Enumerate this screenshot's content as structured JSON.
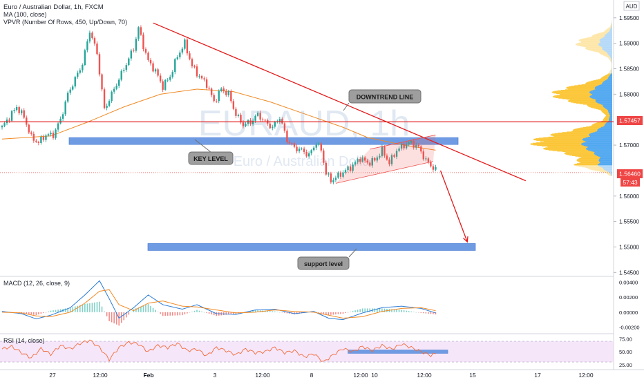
{
  "header": {
    "symbol_line": "Euro / Australian Dollar, 1h, FXCM",
    "ma_line": "MA (100, close)",
    "vpvr_line": "VPVR (Number Of Rows, 450, Up/Down, 70)"
  },
  "watermark": {
    "big": "EURAUD, 1h",
    "small": "Euro / Australian Dollar"
  },
  "currency_label": "AUD",
  "colors": {
    "up": "#26a69a",
    "down": "#ef5350",
    "ma": "#f08a24",
    "zone": "#6f9be3",
    "trend": "#e31a1a",
    "rsi_band": "#f1dcf7",
    "macd": "#2a7bd6",
    "signal": "#f08a24",
    "vpvr_up": "#4aa4ef",
    "vpvr_down": "#fbc32d"
  },
  "chart_data": {
    "type": "candlestick",
    "instrument": "Euro / Australian Dollar",
    "timeframe": "1h",
    "x_tick_labels": [
      "27",
      "12:00",
      "Feb",
      "3",
      "12:00",
      "8",
      "12:00",
      "10",
      "12:00",
      "15",
      "17",
      "12:00"
    ],
    "y_axis": {
      "ticks": [
        "1.59500",
        "1.59000",
        "1.58500",
        "1.58000",
        "1.57000",
        "1.56000",
        "1.55500",
        "1.55000",
        "1.54500"
      ],
      "ylim": [
        1.5445,
        1.5985
      ]
    },
    "price_path": [
      [
        0,
        1.5735
      ],
      [
        3,
        1.5755
      ],
      [
        6,
        1.5775
      ],
      [
        9,
        1.5755
      ],
      [
        12,
        1.5715
      ],
      [
        15,
        1.5705
      ],
      [
        18,
        1.572
      ],
      [
        21,
        1.572
      ],
      [
        24,
        1.575
      ],
      [
        27,
        1.58
      ],
      [
        30,
        1.583
      ],
      [
        33,
        1.586
      ],
      [
        36,
        1.5925
      ],
      [
        39,
        1.588
      ],
      [
        42,
        1.577
      ],
      [
        45,
        1.58
      ],
      [
        48,
        1.583
      ],
      [
        51,
        1.586
      ],
      [
        54,
        1.589
      ],
      [
        56,
        1.593
      ],
      [
        58,
        1.5895
      ],
      [
        60,
        1.5865
      ],
      [
        63,
        1.5845
      ],
      [
        66,
        1.5815
      ],
      [
        69,
        1.5835
      ],
      [
        72,
        1.5875
      ],
      [
        75,
        1.59
      ],
      [
        78,
        1.5855
      ],
      [
        81,
        1.5835
      ],
      [
        84,
        1.582
      ],
      [
        87,
        1.5785
      ],
      [
        90,
        1.581
      ],
      [
        93,
        1.58
      ],
      [
        96,
        1.576
      ],
      [
        99,
        1.574
      ],
      [
        102,
        1.5745
      ],
      [
        105,
        1.576
      ],
      [
        108,
        1.5745
      ],
      [
        111,
        1.5735
      ],
      [
        114,
        1.5755
      ],
      [
        117,
        1.571
      ],
      [
        120,
        1.5695
      ],
      [
        123,
        1.569
      ],
      [
        126,
        1.568
      ],
      [
        129,
        1.5705
      ],
      [
        131,
        1.569
      ],
      [
        133,
        1.5645
      ],
      [
        135,
        1.563
      ],
      [
        138,
        1.564
      ],
      [
        141,
        1.565
      ],
      [
        144,
        1.566
      ],
      [
        147,
        1.5675
      ],
      [
        150,
        1.5665
      ],
      [
        153,
        1.567
      ],
      [
        156,
        1.569
      ],
      [
        159,
        1.5665
      ],
      [
        162,
        1.569
      ],
      [
        165,
        1.57
      ],
      [
        168,
        1.5705
      ],
      [
        171,
        1.5695
      ],
      [
        174,
        1.567
      ],
      [
        176,
        1.566
      ],
      [
        178,
        1.5652
      ]
    ],
    "ma_100": [
      [
        0,
        1.5712
      ],
      [
        20,
        1.5718
      ],
      [
        35,
        1.5745
      ],
      [
        50,
        1.5775
      ],
      [
        65,
        1.58
      ],
      [
        80,
        1.581
      ],
      [
        95,
        1.5805
      ],
      [
        110,
        1.5785
      ],
      [
        125,
        1.576
      ],
      [
        140,
        1.5735
      ],
      [
        150,
        1.5715
      ],
      [
        165,
        1.57
      ],
      [
        178,
        1.569
      ]
    ],
    "levels": {
      "key_level": 1.5708,
      "support_level": 1.55,
      "horizontal_line": 1.57457,
      "current_price": 1.5646
    },
    "downtrend_line": {
      "from": [
        62,
        1.594
      ],
      "to": [
        215,
        1.563
      ]
    },
    "channel": {
      "lower": [
        [
          137,
          1.5625
        ],
        [
          177,
          1.5668
        ]
      ],
      "upper": [
        [
          151,
          1.5692
        ],
        [
          178,
          1.572
        ]
      ]
    },
    "projection_arrow": {
      "from": [
        180,
        1.565
      ],
      "to": [
        191,
        1.551
      ]
    },
    "price_labels": [
      "1.57457",
      "1.56460",
      "57:43"
    ],
    "annotations": [
      "DOWNTREND LINE",
      "KEY LEVEL",
      "support level"
    ],
    "macd": {
      "label": "MACD (12, 26, close, 9)",
      "ticks": [
        "0.00400",
        "0.00200",
        "0.00000",
        "-0.00200"
      ],
      "ylim": [
        -0.0026,
        0.0046
      ],
      "macd_path": [
        [
          0,
          0.0001
        ],
        [
          8,
          -0.0002
        ],
        [
          14,
          -0.0009
        ],
        [
          20,
          -0.0004
        ],
        [
          28,
          0.0006
        ],
        [
          34,
          0.0023
        ],
        [
          40,
          0.0042
        ],
        [
          44,
          0.0018
        ],
        [
          48,
          -0.0008
        ],
        [
          54,
          0.0006
        ],
        [
          60,
          0.0023
        ],
        [
          66,
          0.001
        ],
        [
          74,
          0.0004
        ],
        [
          80,
          0.001
        ],
        [
          88,
          -0.0002
        ],
        [
          96,
          -0.0003
        ],
        [
          104,
          0.0003
        ],
        [
          112,
          0.0004
        ],
        [
          120,
          -0.0002
        ],
        [
          128,
          0.0001
        ],
        [
          134,
          -0.0008
        ],
        [
          140,
          -0.001
        ],
        [
          148,
          -0.0001
        ],
        [
          156,
          0.0006
        ],
        [
          164,
          0.0008
        ],
        [
          172,
          0.0005
        ],
        [
          178,
          -0.0001
        ]
      ],
      "signal_path": [
        [
          0,
          0.0
        ],
        [
          8,
          -0.0001
        ],
        [
          14,
          -0.0005
        ],
        [
          20,
          -0.0006
        ],
        [
          28,
          0.0
        ],
        [
          34,
          0.0012
        ],
        [
          40,
          0.0028
        ],
        [
          44,
          0.003
        ],
        [
          48,
          0.001
        ],
        [
          54,
          0.0002
        ],
        [
          60,
          0.0012
        ],
        [
          66,
          0.0015
        ],
        [
          74,
          0.0008
        ],
        [
          80,
          0.0007
        ],
        [
          88,
          0.0003
        ],
        [
          96,
          -0.0001
        ],
        [
          104,
          0.0
        ],
        [
          112,
          0.0003
        ],
        [
          120,
          0.0001
        ],
        [
          128,
          0.0
        ],
        [
          134,
          -0.0004
        ],
        [
          140,
          -0.0008
        ],
        [
          148,
          -0.0006
        ],
        [
          156,
          0.0001
        ],
        [
          164,
          0.0005
        ],
        [
          172,
          0.0006
        ],
        [
          178,
          0.0002
        ]
      ]
    },
    "rsi": {
      "label": "RSI (14, close)",
      "ticks": [
        "75.00",
        "50.00",
        "25.00"
      ],
      "ylim": [
        18,
        82
      ],
      "band": [
        30,
        70
      ],
      "level_segment": [
        [
          142,
          50
        ],
        [
          178,
          50
        ]
      ],
      "rsi_path": [
        [
          0,
          55
        ],
        [
          4,
          60
        ],
        [
          8,
          48
        ],
        [
          12,
          38
        ],
        [
          16,
          56
        ],
        [
          20,
          45
        ],
        [
          24,
          62
        ],
        [
          28,
          55
        ],
        [
          32,
          66
        ],
        [
          36,
          72
        ],
        [
          40,
          58
        ],
        [
          44,
          35
        ],
        [
          48,
          58
        ],
        [
          52,
          68
        ],
        [
          56,
          65
        ],
        [
          60,
          50
        ],
        [
          64,
          62
        ],
        [
          68,
          58
        ],
        [
          72,
          66
        ],
        [
          76,
          52
        ],
        [
          80,
          55
        ],
        [
          84,
          42
        ],
        [
          88,
          58
        ],
        [
          92,
          52
        ],
        [
          96,
          44
        ],
        [
          100,
          55
        ],
        [
          104,
          48
        ],
        [
          108,
          50
        ],
        [
          112,
          58
        ],
        [
          116,
          48
        ],
        [
          120,
          52
        ],
        [
          124,
          40
        ],
        [
          128,
          46
        ],
        [
          132,
          30
        ],
        [
          136,
          44
        ],
        [
          140,
          56
        ],
        [
          144,
          50
        ],
        [
          148,
          60
        ],
        [
          152,
          52
        ],
        [
          156,
          62
        ],
        [
          160,
          55
        ],
        [
          164,
          65
        ],
        [
          168,
          58
        ],
        [
          172,
          50
        ],
        [
          176,
          43
        ],
        [
          178,
          46
        ]
      ]
    },
    "volume_profile": {
      "price_range": [
        1.564,
        1.595
      ],
      "poc_price": 1.57457,
      "value_area": [
        1.566,
        1.584
      ]
    }
  }
}
